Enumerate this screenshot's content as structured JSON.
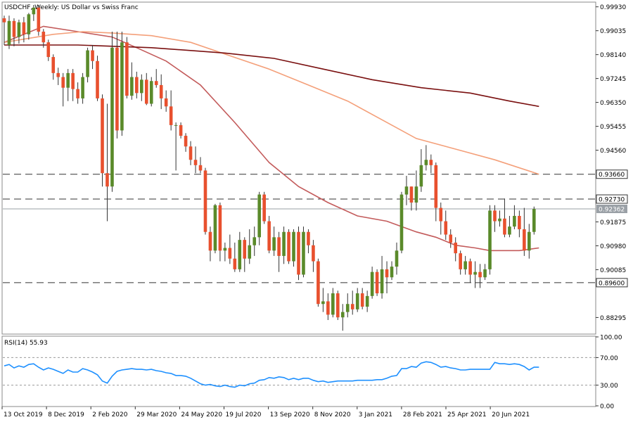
{
  "colors": {
    "bull": "#5a8a2a",
    "bear": "#e8502e",
    "ma_fast": "#c35b5b",
    "ma_mid": "#f4a07a",
    "ma_slow": "#7a1010",
    "rsi": "#1e90ff",
    "price_tag_bg": "#ffffff"
  },
  "price_axis": {
    "ticks": [
      "0.99930",
      "0.99035",
      "0.98140",
      "0.97245",
      "0.96350",
      "0.95455",
      "0.94560",
      "0.91875",
      "0.90980",
      "0.90085",
      "0.88295"
    ]
  },
  "rsi_axis": {
    "ticks": [
      "100.00",
      "70.00",
      "30.00",
      "0.00"
    ]
  },
  "time_axis": [
    "13 Oct 2019",
    "8 Dec 2019",
    "2 Feb 2020",
    "29 Mar 2020",
    "24 May 2020",
    "19 Jul 2020",
    "13 Sep 2020",
    "8 Nov 2020",
    "3 Jan 2021",
    "28 Feb 2021",
    "25 Apr 2021",
    "20 Jun 2021"
  ],
  "chart_data": {
    "type": "candlestick",
    "title": "USDCHF, Weekly:  US Dollar vs Swiss Franc",
    "price_range": [
      0.877,
      1.0008
    ],
    "levels": [
      {
        "value": 0.9366,
        "label": "0.93660"
      },
      {
        "value": 0.9273,
        "label": "0.92730"
      },
      {
        "value": 0.896,
        "label": "0.89600"
      }
    ],
    "current_price": {
      "value": 0.92362,
      "label": "0.92362"
    },
    "candles": [
      [
        0.995,
        0.9935,
        0.996,
        0.985
      ],
      [
        0.985,
        0.994,
        0.996,
        0.9835
      ],
      [
        0.994,
        0.988,
        0.995,
        0.9845
      ],
      [
        0.988,
        0.9935,
        0.9945,
        0.9855
      ],
      [
        0.9935,
        0.989,
        0.9955,
        0.986
      ],
      [
        0.989,
        0.9965,
        0.997,
        0.987
      ],
      [
        0.9965,
        0.999,
        1.0,
        0.994
      ],
      [
        0.999,
        0.99,
        1.0,
        0.9885
      ],
      [
        0.99,
        0.986,
        0.991,
        0.984
      ],
      [
        0.986,
        0.9805,
        0.987,
        0.979
      ],
      [
        0.9805,
        0.9745,
        0.9815,
        0.972
      ],
      [
        0.9745,
        0.973,
        0.9765,
        0.97
      ],
      [
        0.973,
        0.969,
        0.9745,
        0.962
      ],
      [
        0.969,
        0.9745,
        0.976,
        0.964
      ],
      [
        0.9745,
        0.9685,
        0.976,
        0.964
      ],
      [
        0.9685,
        0.965,
        0.971,
        0.963
      ],
      [
        0.965,
        0.973,
        0.9745,
        0.963
      ],
      [
        0.973,
        0.983,
        0.984,
        0.971
      ],
      [
        0.983,
        0.979,
        0.985,
        0.976
      ],
      [
        0.979,
        0.965,
        0.981,
        0.964
      ],
      [
        0.965,
        0.937,
        0.9665,
        0.932
      ],
      [
        0.937,
        0.932,
        0.963,
        0.919
      ],
      [
        0.932,
        0.984,
        0.99,
        0.93
      ],
      [
        0.984,
        0.953,
        0.99,
        0.95
      ],
      [
        0.953,
        0.986,
        0.99,
        0.951
      ],
      [
        0.986,
        0.966,
        0.988,
        0.965
      ],
      [
        0.966,
        0.973,
        0.9785,
        0.9645
      ],
      [
        0.973,
        0.967,
        0.975,
        0.965
      ],
      [
        0.967,
        0.972,
        0.974,
        0.964
      ],
      [
        0.972,
        0.963,
        0.9745,
        0.9625
      ],
      [
        0.963,
        0.9715,
        0.973,
        0.962
      ],
      [
        0.9715,
        0.97,
        0.976,
        0.969
      ],
      [
        0.97,
        0.965,
        0.974,
        0.961
      ],
      [
        0.965,
        0.962,
        0.968,
        0.96
      ],
      [
        0.962,
        0.955,
        0.968,
        0.953
      ],
      [
        0.955,
        0.955,
        0.956,
        0.938
      ],
      [
        0.955,
        0.951,
        0.956,
        0.95
      ],
      [
        0.951,
        0.947,
        0.952,
        0.945
      ],
      [
        0.947,
        0.942,
        0.949,
        0.94
      ],
      [
        0.942,
        0.94,
        0.947,
        0.937
      ],
      [
        0.94,
        0.938,
        0.943,
        0.937
      ],
      [
        0.938,
        0.915,
        0.939,
        0.914
      ],
      [
        0.915,
        0.908,
        0.917,
        0.904
      ],
      [
        0.908,
        0.925,
        0.9255,
        0.907
      ],
      [
        0.925,
        0.908,
        0.926,
        0.904
      ],
      [
        0.908,
        0.909,
        0.911,
        0.904
      ],
      [
        0.909,
        0.905,
        0.914,
        0.903
      ],
      [
        0.905,
        0.901,
        0.911,
        0.9
      ],
      [
        0.901,
        0.912,
        0.915,
        0.9
      ],
      [
        0.912,
        0.905,
        0.913,
        0.9
      ],
      [
        0.905,
        0.91,
        0.916,
        0.903
      ],
      [
        0.91,
        0.913,
        0.917,
        0.906
      ],
      [
        0.913,
        0.929,
        0.93,
        0.91
      ],
      [
        0.929,
        0.919,
        0.93,
        0.918
      ],
      [
        0.919,
        0.908,
        0.921,
        0.907
      ],
      [
        0.908,
        0.913,
        0.917,
        0.906
      ],
      [
        0.913,
        0.906,
        0.915,
        0.9
      ],
      [
        0.906,
        0.915,
        0.917,
        0.903
      ],
      [
        0.915,
        0.904,
        0.916,
        0.903
      ],
      [
        0.904,
        0.915,
        0.916,
        0.902
      ],
      [
        0.915,
        0.899,
        0.917,
        0.897
      ],
      [
        0.899,
        0.915,
        0.917,
        0.898
      ],
      [
        0.915,
        0.91,
        0.916,
        0.907
      ],
      [
        0.91,
        0.904,
        0.912,
        0.9
      ],
      [
        0.904,
        0.888,
        0.905,
        0.887
      ],
      [
        0.888,
        0.889,
        0.894,
        0.885
      ],
      [
        0.889,
        0.884,
        0.892,
        0.882
      ],
      [
        0.884,
        0.892,
        0.894,
        0.883
      ],
      [
        0.892,
        0.883,
        0.893,
        0.882
      ],
      [
        0.883,
        0.885,
        0.888,
        0.878
      ],
      [
        0.885,
        0.888,
        0.892,
        0.883
      ],
      [
        0.888,
        0.886,
        0.893,
        0.884
      ],
      [
        0.886,
        0.892,
        0.894,
        0.885
      ],
      [
        0.892,
        0.887,
        0.894,
        0.886
      ],
      [
        0.887,
        0.891,
        0.893,
        0.885
      ],
      [
        0.891,
        0.9,
        0.902,
        0.89
      ],
      [
        0.9,
        0.892,
        0.901,
        0.891
      ],
      [
        0.892,
        0.901,
        0.906,
        0.89
      ],
      [
        0.901,
        0.898,
        0.904,
        0.892
      ],
      [
        0.898,
        0.902,
        0.904,
        0.897
      ],
      [
        0.902,
        0.908,
        0.911,
        0.899
      ],
      [
        0.908,
        0.929,
        0.93,
        0.907
      ],
      [
        0.929,
        0.932,
        0.936,
        0.925
      ],
      [
        0.932,
        0.926,
        0.932,
        0.923
      ],
      [
        0.926,
        0.932,
        0.938,
        0.923
      ],
      [
        0.932,
        0.94,
        0.946,
        0.93
      ],
      [
        0.94,
        0.942,
        0.9475,
        0.938
      ],
      [
        0.942,
        0.94,
        0.944,
        0.937
      ],
      [
        0.94,
        0.924,
        0.941,
        0.919
      ],
      [
        0.924,
        0.919,
        0.926,
        0.914
      ],
      [
        0.919,
        0.914,
        0.923,
        0.912
      ],
      [
        0.914,
        0.911,
        0.916,
        0.909
      ],
      [
        0.911,
        0.907,
        0.913,
        0.904
      ],
      [
        0.907,
        0.901,
        0.908,
        0.899
      ],
      [
        0.901,
        0.904,
        0.906,
        0.899
      ],
      [
        0.904,
        0.899,
        0.905,
        0.896
      ],
      [
        0.899,
        0.9,
        0.904,
        0.894
      ],
      [
        0.9,
        0.898,
        0.903,
        0.894
      ],
      [
        0.898,
        0.901,
        0.903,
        0.897
      ],
      [
        0.901,
        0.923,
        0.925,
        0.899
      ],
      [
        0.923,
        0.919,
        0.925,
        0.915
      ],
      [
        0.919,
        0.92,
        0.923,
        0.917
      ],
      [
        0.92,
        0.914,
        0.9275,
        0.913
      ],
      [
        0.914,
        0.917,
        0.921,
        0.913
      ],
      [
        0.917,
        0.921,
        0.925,
        0.916
      ],
      [
        0.921,
        0.916,
        0.923,
        0.913
      ],
      [
        0.916,
        0.908,
        0.924,
        0.906
      ],
      [
        0.908,
        0.915,
        0.918,
        0.905
      ],
      [
        0.915,
        0.9236,
        0.9245,
        0.914
      ]
    ],
    "moving_averages": [
      {
        "points": [
          [
            0,
            0.986
          ],
          [
            8,
            0.992
          ],
          [
            15,
            0.99
          ],
          [
            22,
            0.988
          ],
          [
            27,
            0.984
          ],
          [
            33,
            0.979
          ],
          [
            40,
            0.97
          ],
          [
            47,
            0.956
          ],
          [
            54,
            0.941
          ],
          [
            60,
            0.932
          ],
          [
            66,
            0.926
          ],
          [
            72,
            0.921
          ],
          [
            78,
            0.919
          ],
          [
            84,
            0.915
          ],
          [
            88,
            0.913
          ],
          [
            92,
            0.91
          ],
          [
            96,
            0.909
          ],
          [
            99,
            0.908
          ],
          [
            101,
            0.908
          ],
          [
            105,
            0.908
          ],
          [
            109,
            0.909
          ]
        ]
      },
      {
        "points": [
          [
            0,
            0.986
          ],
          [
            10,
            0.989
          ],
          [
            16,
            0.99
          ],
          [
            22,
            0.9895
          ],
          [
            30,
            0.9885
          ],
          [
            38,
            0.986
          ],
          [
            46,
            0.981
          ],
          [
            54,
            0.976
          ],
          [
            62,
            0.97
          ],
          [
            70,
            0.964
          ],
          [
            78,
            0.956
          ],
          [
            84,
            0.95
          ],
          [
            92,
            0.946
          ],
          [
            100,
            0.942
          ],
          [
            109,
            0.9366
          ]
        ]
      },
      {
        "points": [
          [
            0,
            0.985
          ],
          [
            15,
            0.985
          ],
          [
            30,
            0.984
          ],
          [
            45,
            0.982
          ],
          [
            55,
            0.98
          ],
          [
            65,
            0.976
          ],
          [
            75,
            0.972
          ],
          [
            85,
            0.969
          ],
          [
            95,
            0.967
          ],
          [
            103,
            0.964
          ],
          [
            109,
            0.962
          ]
        ]
      }
    ],
    "rsi": {
      "label": "RSI(14) 55.93",
      "range": [
        0,
        100
      ],
      "levels": [
        70,
        30
      ],
      "values": [
        58,
        60,
        55,
        58,
        56,
        60,
        61,
        56,
        52,
        55,
        53,
        50,
        47,
        52,
        49,
        49,
        54,
        52,
        49,
        45,
        36,
        33,
        43,
        50,
        52,
        53,
        54,
        53,
        53,
        52,
        53,
        51,
        50,
        48,
        47,
        44,
        44,
        43,
        40,
        36,
        32,
        30,
        31,
        29,
        28,
        30,
        28,
        27,
        30,
        29,
        32,
        33,
        37,
        38,
        41,
        40,
        42,
        41,
        38,
        40,
        38,
        40,
        40,
        37,
        35,
        36,
        34,
        35,
        36,
        36,
        36,
        36,
        37,
        37,
        37,
        37,
        38,
        38,
        40,
        43,
        44,
        54,
        54,
        57,
        56,
        62,
        64,
        63,
        60,
        56,
        57,
        55,
        54,
        52,
        52,
        53,
        53,
        53,
        53,
        53,
        63,
        61,
        61,
        60,
        61,
        60,
        57,
        52,
        56,
        56
      ]
    }
  }
}
